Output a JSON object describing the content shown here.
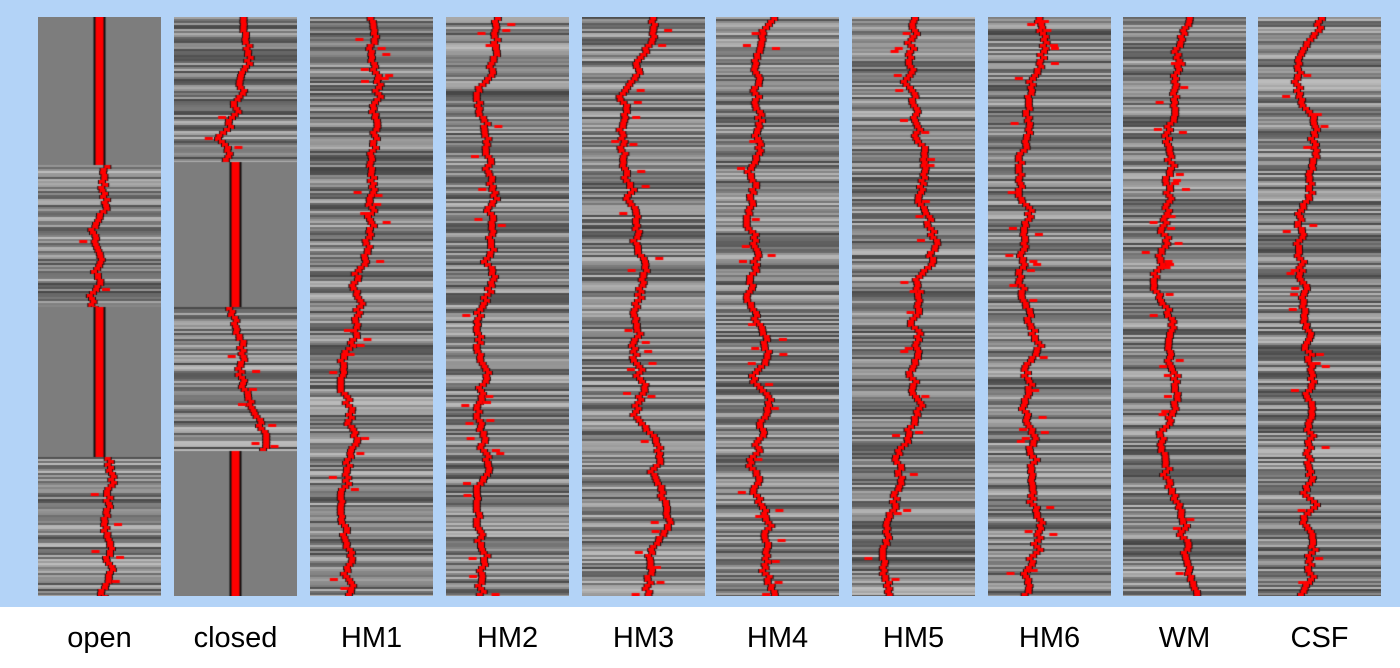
{
  "figure": {
    "background_color": "#b3d3f7",
    "trace_color": "#ff0000",
    "panels": [
      {
        "label": "open"
      },
      {
        "label": "closed"
      },
      {
        "label": "HM1"
      },
      {
        "label": "HM2"
      },
      {
        "label": "HM3"
      },
      {
        "label": "HM4"
      },
      {
        "label": "HM5"
      },
      {
        "label": "HM6"
      },
      {
        "label": "WM"
      },
      {
        "label": "CSF"
      }
    ]
  }
}
